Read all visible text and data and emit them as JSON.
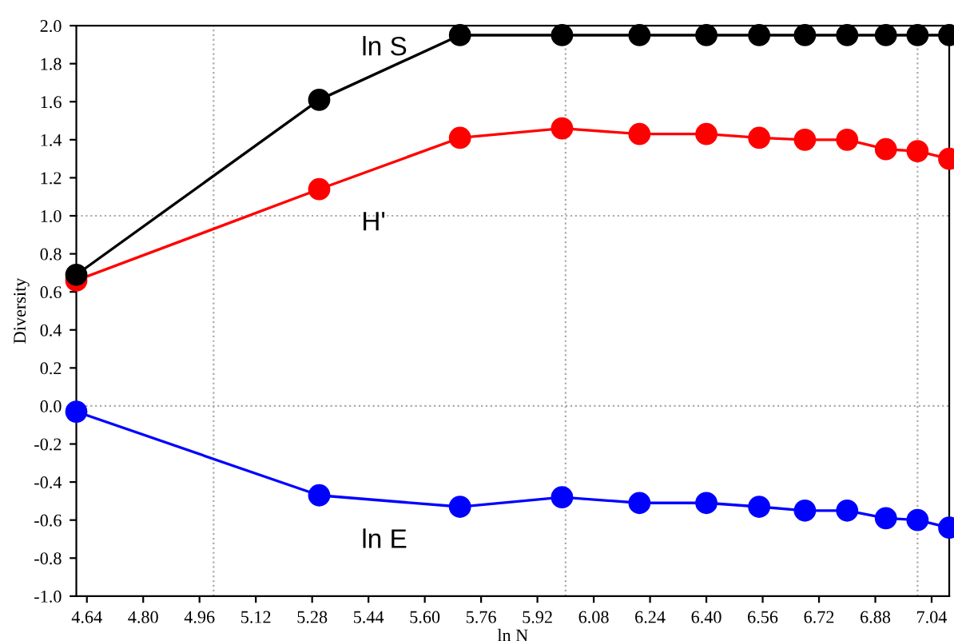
{
  "chart_data": {
    "type": "line",
    "xlabel": "ln N",
    "ylabel": "Diversity",
    "x": [
      4.61,
      5.3,
      5.7,
      5.99,
      6.21,
      6.4,
      6.55,
      6.68,
      6.8,
      6.91,
      7.0,
      7.09
    ],
    "series": [
      {
        "name": "ln S",
        "color": "#000000",
        "values": [
          0.69,
          1.61,
          1.95,
          1.95,
          1.95,
          1.95,
          1.95,
          1.95,
          1.95,
          1.95,
          1.95,
          1.95
        ]
      },
      {
        "name": "H'",
        "color": "#ff0000",
        "values": [
          0.66,
          1.14,
          1.41,
          1.46,
          1.43,
          1.43,
          1.41,
          1.4,
          1.4,
          1.35,
          1.34,
          1.3
        ]
      },
      {
        "name": "ln E",
        "color": "#0000ff",
        "values": [
          -0.03,
          -0.47,
          -0.53,
          -0.48,
          -0.51,
          -0.51,
          -0.53,
          -0.55,
          -0.55,
          -0.59,
          -0.6,
          -0.64
        ]
      }
    ],
    "xlim": [
      4.61,
      7.09
    ],
    "ylim": [
      -1.0,
      2.0
    ],
    "xticks": [
      {
        "value": 4.64,
        "label": "4.64"
      },
      {
        "value": 4.8,
        "label": "4.80"
      },
      {
        "value": 4.96,
        "label": "4.96"
      },
      {
        "value": 5.12,
        "label": "5.12"
      },
      {
        "value": 5.28,
        "label": "5.28"
      },
      {
        "value": 5.44,
        "label": "5.44"
      },
      {
        "value": 5.6,
        "label": "5.60"
      },
      {
        "value": 5.76,
        "label": "5.76"
      },
      {
        "value": 5.92,
        "label": "5.92"
      },
      {
        "value": 6.08,
        "label": "6.08"
      },
      {
        "value": 6.24,
        "label": "6.24"
      },
      {
        "value": 6.4,
        "label": "6.40"
      },
      {
        "value": 6.56,
        "label": "6.56"
      },
      {
        "value": 6.72,
        "label": "6.72"
      },
      {
        "value": 6.88,
        "label": "6.88"
      },
      {
        "value": 7.04,
        "label": "7.04"
      }
    ],
    "yticks": [
      {
        "value": -1.0,
        "label": "-1.0"
      },
      {
        "value": -0.8,
        "label": "-0.8"
      },
      {
        "value": -0.6,
        "label": "-0.6"
      },
      {
        "value": -0.4,
        "label": "-0.4"
      },
      {
        "value": -0.2,
        "label": "-0.2"
      },
      {
        "value": 0.0,
        "label": "0.0"
      },
      {
        "value": 0.2,
        "label": "0.2"
      },
      {
        "value": 0.4,
        "label": "0.4"
      },
      {
        "value": 0.6,
        "label": "0.6"
      },
      {
        "value": 0.8,
        "label": "0.8"
      },
      {
        "value": 1.0,
        "label": "1.0"
      },
      {
        "value": 1.2,
        "label": "1.2"
      },
      {
        "value": 1.4,
        "label": "1.4"
      },
      {
        "value": 1.6,
        "label": "1.6"
      },
      {
        "value": 1.8,
        "label": "1.8"
      },
      {
        "value": 2.0,
        "label": "2.0"
      }
    ],
    "ref_lines": [
      {
        "axis": "x",
        "value": 5.0,
        "color": "#aaaaaa",
        "line_style": "dotted"
      },
      {
        "axis": "x",
        "value": 6.0,
        "color": "#aaaaaa",
        "line_style": "dotted"
      },
      {
        "axis": "x",
        "value": 7.0,
        "color": "#aaaaaa",
        "line_style": "dotted"
      },
      {
        "axis": "y",
        "value": 0.0,
        "color": "#aaaaaa",
        "line_style": "dotted"
      },
      {
        "axis": "y",
        "value": 1.0,
        "color": "#aaaaaa",
        "line_style": "dotted"
      }
    ],
    "marker": "circle",
    "line_style": "solid",
    "grid": false,
    "legend": false
  }
}
